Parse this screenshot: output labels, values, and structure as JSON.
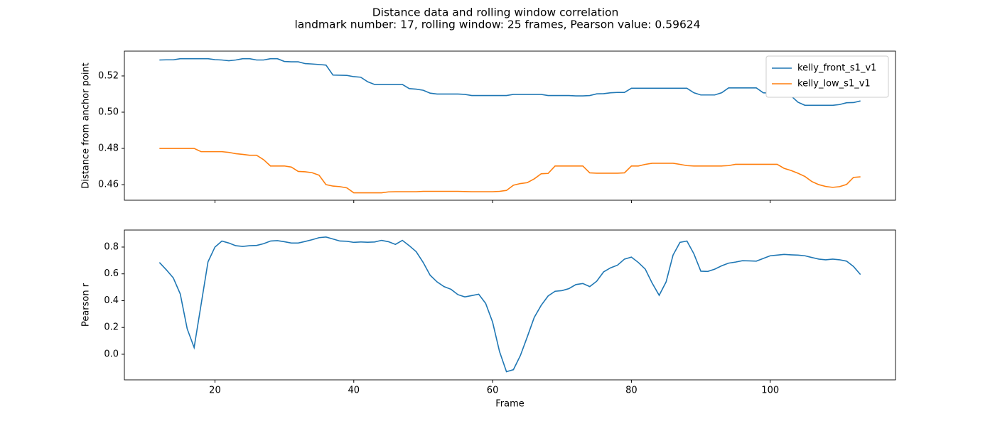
{
  "chart_data": [
    {
      "type": "line",
      "title": "Distance data and rolling window correlation",
      "subtitle": "landmark number: 17, rolling window: 25 frames, Pearson value: 0.59624",
      "y_label": "Distance from anchor point",
      "legend": "upper right",
      "x": [
        12,
        13,
        14,
        15,
        16,
        17,
        18,
        19,
        20,
        21,
        22,
        23,
        24,
        25,
        26,
        27,
        28,
        29,
        30,
        31,
        32,
        33,
        34,
        35,
        36,
        37,
        38,
        39,
        40,
        41,
        42,
        43,
        44,
        45,
        46,
        47,
        48,
        49,
        50,
        51,
        52,
        53,
        54,
        55,
        56,
        57,
        58,
        59,
        60,
        61,
        62,
        63,
        64,
        65,
        66,
        67,
        68,
        69,
        70,
        71,
        72,
        73,
        74,
        75,
        76,
        77,
        78,
        79,
        80,
        81,
        82,
        83,
        84,
        85,
        86,
        87,
        88,
        89,
        90,
        91,
        92,
        93,
        94,
        95,
        96,
        97,
        98,
        99,
        100,
        101,
        102,
        103,
        104,
        105,
        106,
        107,
        108,
        109,
        110,
        111,
        112,
        113
      ],
      "series": [
        {
          "name": "kelly_front_s1_v1",
          "color": "#1f77b4",
          "values": [
            0.5288,
            0.5289,
            0.5289,
            0.5295,
            0.5295,
            0.5295,
            0.5295,
            0.5295,
            0.529,
            0.5288,
            0.5284,
            0.5288,
            0.5295,
            0.5295,
            0.5288,
            0.5288,
            0.5295,
            0.5295,
            0.528,
            0.5278,
            0.5278,
            0.5268,
            0.5266,
            0.5263,
            0.526,
            0.5205,
            0.5204,
            0.5203,
            0.5196,
            0.5193,
            0.5168,
            0.5153,
            0.5153,
            0.5153,
            0.5153,
            0.5153,
            0.513,
            0.5127,
            0.5121,
            0.5105,
            0.51,
            0.51,
            0.51,
            0.51,
            0.5098,
            0.5092,
            0.5092,
            0.5092,
            0.5092,
            0.5092,
            0.5092,
            0.5098,
            0.5098,
            0.5098,
            0.5098,
            0.5098,
            0.5092,
            0.5092,
            0.5092,
            0.5092,
            0.509,
            0.509,
            0.5092,
            0.5101,
            0.5102,
            0.5107,
            0.5109,
            0.5109,
            0.5132,
            0.5132,
            0.5132,
            0.5132,
            0.5132,
            0.5132,
            0.5132,
            0.5132,
            0.5132,
            0.5107,
            0.5095,
            0.5095,
            0.5095,
            0.5107,
            0.5134,
            0.5134,
            0.5134,
            0.5134,
            0.5134,
            0.5107,
            0.5105,
            0.5096,
            0.5092,
            0.509,
            0.5055,
            0.5038,
            0.5038,
            0.5038,
            0.5038,
            0.5038,
            0.5042,
            0.5052,
            0.5053,
            0.5062
          ]
        },
        {
          "name": "kelly_low_s1_v1",
          "color": "#ff7f0e",
          "values": [
            0.48,
            0.48,
            0.48,
            0.48,
            0.48,
            0.48,
            0.4782,
            0.4782,
            0.4782,
            0.4782,
            0.4778,
            0.4771,
            0.4767,
            0.4762,
            0.4762,
            0.4738,
            0.4703,
            0.4703,
            0.4703,
            0.4697,
            0.4673,
            0.4671,
            0.4666,
            0.4652,
            0.46,
            0.4592,
            0.4589,
            0.4582,
            0.4555,
            0.4555,
            0.4555,
            0.4555,
            0.4555,
            0.456,
            0.4561,
            0.4561,
            0.4561,
            0.4561,
            0.4563,
            0.4563,
            0.4563,
            0.4563,
            0.4563,
            0.4563,
            0.4562,
            0.4561,
            0.4561,
            0.4561,
            0.4561,
            0.4563,
            0.4568,
            0.4597,
            0.4606,
            0.4611,
            0.4632,
            0.466,
            0.4662,
            0.4703,
            0.4703,
            0.4703,
            0.4703,
            0.4703,
            0.4665,
            0.4663,
            0.4663,
            0.4663,
            0.4663,
            0.4665,
            0.4703,
            0.4703,
            0.4712,
            0.4718,
            0.4718,
            0.4718,
            0.4718,
            0.4712,
            0.4705,
            0.4703,
            0.4703,
            0.4703,
            0.4703,
            0.4703,
            0.4705,
            0.4712,
            0.4712,
            0.4712,
            0.4712,
            0.4712,
            0.4712,
            0.4712,
            0.469,
            0.4678,
            0.4663,
            0.4645,
            0.4617,
            0.46,
            0.459,
            0.4585,
            0.4589,
            0.4601,
            0.464,
            0.4643
          ]
        }
      ],
      "xlim": [
        6.95,
        118.05
      ],
      "xticks": [
        20,
        40,
        60,
        80,
        100
      ],
      "ylim": [
        0.4514,
        0.5337
      ],
      "yticks": [
        0.46,
        0.48,
        {
          "value": 0.5,
          "label": "0.50"
        },
        0.52
      ]
    },
    {
      "type": "line",
      "x_label": "Frame",
      "y_label": "Pearson r",
      "x": [
        12,
        13,
        14,
        15,
        16,
        17,
        18,
        19,
        20,
        21,
        22,
        23,
        24,
        25,
        26,
        27,
        28,
        29,
        30,
        31,
        32,
        33,
        34,
        35,
        36,
        37,
        38,
        39,
        40,
        41,
        42,
        43,
        44,
        45,
        46,
        47,
        48,
        49,
        50,
        51,
        52,
        53,
        54,
        55,
        56,
        57,
        58,
        59,
        60,
        61,
        62,
        63,
        64,
        65,
        66,
        67,
        68,
        69,
        70,
        71,
        72,
        73,
        74,
        75,
        76,
        77,
        78,
        79,
        80,
        81,
        82,
        83,
        84,
        85,
        86,
        87,
        88,
        89,
        90,
        91,
        92,
        93,
        94,
        95,
        96,
        97,
        98,
        99,
        100,
        101,
        102,
        103,
        104,
        105,
        106,
        107,
        108,
        109,
        110,
        111,
        112,
        113
      ],
      "series": [
        {
          "color": "#1f77b4",
          "values": [
            0.685,
            0.63,
            0.57,
            0.45,
            0.19,
            0.05,
            0.37,
            0.69,
            0.8,
            0.845,
            0.83,
            0.81,
            0.805,
            0.81,
            0.812,
            0.825,
            0.845,
            0.848,
            0.84,
            0.83,
            0.83,
            0.842,
            0.855,
            0.87,
            0.875,
            0.86,
            0.845,
            0.843,
            0.835,
            0.838,
            0.836,
            0.838,
            0.85,
            0.84,
            0.82,
            0.85,
            0.81,
            0.765,
            0.685,
            0.59,
            0.54,
            0.505,
            0.485,
            0.445,
            0.428,
            0.438,
            0.448,
            0.38,
            0.24,
            0.02,
            -0.13,
            -0.115,
            -0.01,
            0.13,
            0.275,
            0.365,
            0.435,
            0.47,
            0.475,
            0.49,
            0.52,
            0.528,
            0.505,
            0.545,
            0.615,
            0.645,
            0.665,
            0.71,
            0.725,
            0.685,
            0.635,
            0.53,
            0.44,
            0.54,
            0.74,
            0.835,
            0.845,
            0.75,
            0.62,
            0.618,
            0.635,
            0.66,
            0.68,
            0.688,
            0.698,
            0.697,
            0.695,
            0.715,
            0.735,
            0.74,
            0.745,
            0.742,
            0.74,
            0.735,
            0.722,
            0.71,
            0.705,
            0.71,
            0.705,
            0.695,
            0.655,
            0.595
          ]
        }
      ],
      "xlim": [
        6.95,
        118.05
      ],
      "xticks": [
        20,
        40,
        60,
        80,
        100
      ],
      "ylim": [
        -0.191,
        0.927
      ],
      "yticks": [
        {
          "value": 0,
          "label": "0.0"
        },
        0.2,
        0.4,
        0.6,
        0.8
      ]
    }
  ]
}
